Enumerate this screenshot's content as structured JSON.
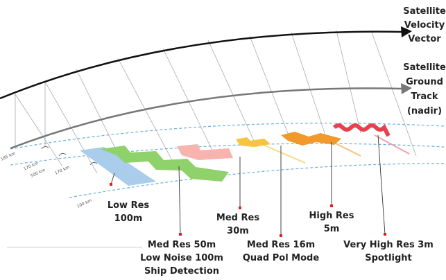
{
  "header": {
    "velocity": [
      "Satellite",
      "Velocity",
      "Vector"
    ],
    "ground_track": [
      "Satellite",
      "Ground",
      "Track",
      "(nadir)"
    ]
  },
  "modes": [
    {
      "lines": [
        "Low Res",
        "100m"
      ]
    },
    {
      "lines": [
        "Med Res 50m",
        "Low Noise 100m",
        "Ship Detection"
      ]
    },
    {
      "lines": [
        "Med Res",
        "30m"
      ]
    },
    {
      "lines": [
        "Med Res 16m",
        "Quad Pol Mode"
      ]
    },
    {
      "lines": [
        "High Res",
        "5m"
      ]
    },
    {
      "lines": [
        "Very High Res 3m",
        "Spotlight"
      ]
    }
  ],
  "distances": [
    "185 km",
    "170 km",
    "500 km",
    "170 km",
    "100 km"
  ]
}
